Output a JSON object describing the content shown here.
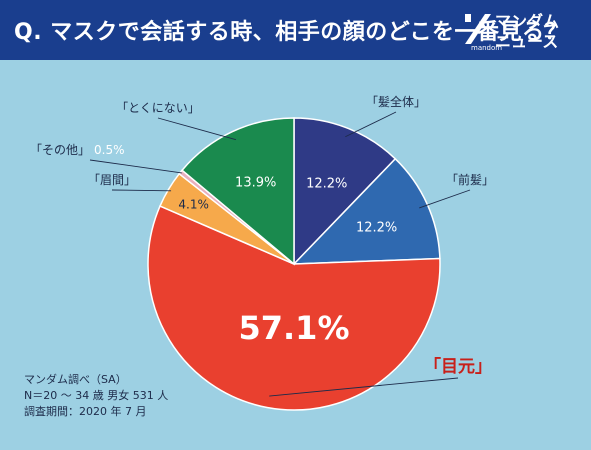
{
  "header": {
    "title": "Q. マスクで会話する時、相手の顔のどこを一番見る？"
  },
  "logo": {
    "line1": "マンダム",
    "line2": "ニュース",
    "sub": "mandom",
    "mark_icon": "mandom-slash-logo-icon"
  },
  "footnote": {
    "line1": "マンダム調べ（SA）",
    "line2": "N＝20 ～ 34 歳 男女 531 人",
    "line3": "調査期間：2020 年 7 月"
  },
  "chart_data": {
    "type": "pie",
    "title": "",
    "slices": [
      {
        "label": "「髪全体」",
        "value": 12.2,
        "value_label": "12.2%",
        "color": "#2f3a86"
      },
      {
        "label": "「前髪」",
        "value": 12.2,
        "value_label": "12.2%",
        "color": "#2f69b0"
      },
      {
        "label": "「目元」",
        "value": 57.1,
        "value_label": "57.1%",
        "color": "#e9402f"
      },
      {
        "label": "「眉間」",
        "value": 4.1,
        "value_label": "4.1%",
        "color": "#f6a94b"
      },
      {
        "label": "「その他」",
        "value": 0.5,
        "value_label": "0.5%",
        "color": "#e9b0bd"
      },
      {
        "label": "「とくにない」",
        "value": 13.9,
        "value_label": "13.9%",
        "color": "#1a8a4e"
      }
    ]
  }
}
